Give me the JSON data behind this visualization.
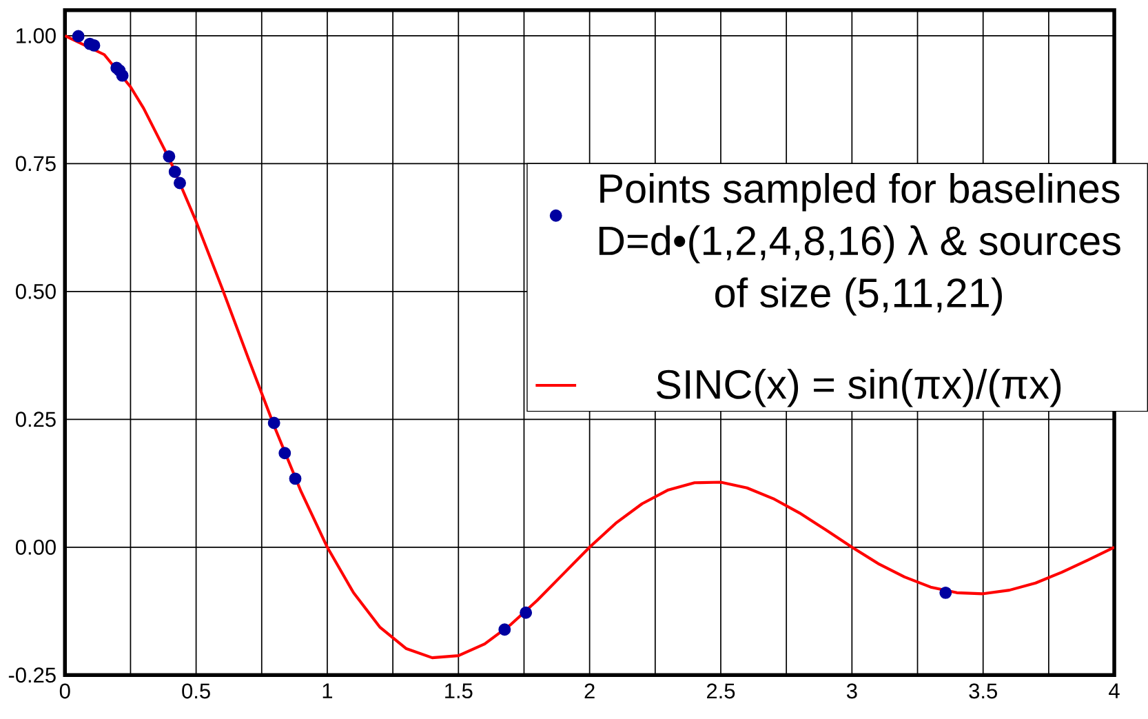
{
  "chart_data": {
    "type": "line",
    "xlim": [
      0,
      4
    ],
    "ylim": [
      -0.25,
      1.05
    ],
    "xticks": [
      0,
      {
        "value": 0.25,
        "label": null
      },
      0.5,
      {
        "value": 0.75,
        "label": null
      },
      1,
      {
        "value": 1.25,
        "label": null
      },
      1.5,
      {
        "value": 1.75,
        "label": null
      },
      2,
      {
        "value": 2.25,
        "label": null
      },
      2.5,
      {
        "value": 2.75,
        "label": null
      },
      3,
      {
        "value": 3.25,
        "label": null
      },
      3.5,
      {
        "value": 3.75,
        "label": null
      },
      4
    ],
    "yticks": [
      {
        "value": -0.25,
        "label": "-0.25"
      },
      {
        "value": 0,
        "label": "0.00"
      },
      {
        "value": 0.25,
        "label": "0.25"
      },
      {
        "value": 0.5,
        "label": "0.50"
      },
      {
        "value": 0.75,
        "label": "0.75"
      },
      {
        "value": 1,
        "label": "1.00"
      }
    ],
    "grid": true,
    "legend": "right",
    "series": [
      {
        "name": "Points sampled for baselines D=d•(1,2,4,8,16) λ  & sources of size (5,11,21)",
        "type": "scatter",
        "marker": "circle",
        "color": "#0000a0",
        "x": [
          0.051,
          0.095,
          0.111,
          0.197,
          0.208,
          0.219,
          0.397,
          0.419,
          0.438,
          0.797,
          0.838,
          0.878,
          1.676,
          1.757,
          3.357
        ],
        "values": [
          0.999,
          0.984,
          0.981,
          0.937,
          0.932,
          0.922,
          0.764,
          0.734,
          0.712,
          0.243,
          0.184,
          0.134,
          -0.161,
          -0.128,
          -0.089
        ]
      },
      {
        "name": "SINC(x) = sin(πx)/(πx)",
        "line_style": "solid",
        "color": "#ff0000",
        "x": [
          0,
          0.15,
          0.25,
          0.3,
          0.4,
          0.5,
          0.6,
          0.7,
          0.8,
          0.9,
          1,
          1.1,
          1.2,
          1.3,
          1.4,
          1.5,
          1.6,
          1.7,
          1.8,
          1.9,
          2,
          2.1,
          2.2,
          2.3,
          2.4,
          2.5,
          2.6,
          2.7,
          2.8,
          2.9,
          3,
          3.1,
          3.2,
          3.3,
          3.4,
          3.5,
          3.6,
          3.7,
          3.8,
          3.9,
          4
        ],
        "values": [
          1,
          0.963,
          0.9,
          0.858,
          0.757,
          0.637,
          0.505,
          0.368,
          0.234,
          0.109,
          0,
          -0.089,
          -0.156,
          -0.198,
          -0.216,
          -0.212,
          -0.189,
          -0.151,
          -0.104,
          -0.052,
          0,
          0.047,
          0.085,
          0.112,
          0.126,
          0.127,
          0.116,
          0.095,
          0.067,
          0.034,
          0,
          -0.032,
          -0.058,
          -0.078,
          -0.089,
          -0.091,
          -0.084,
          -0.07,
          -0.049,
          -0.025,
          0
        ]
      }
    ]
  }
}
